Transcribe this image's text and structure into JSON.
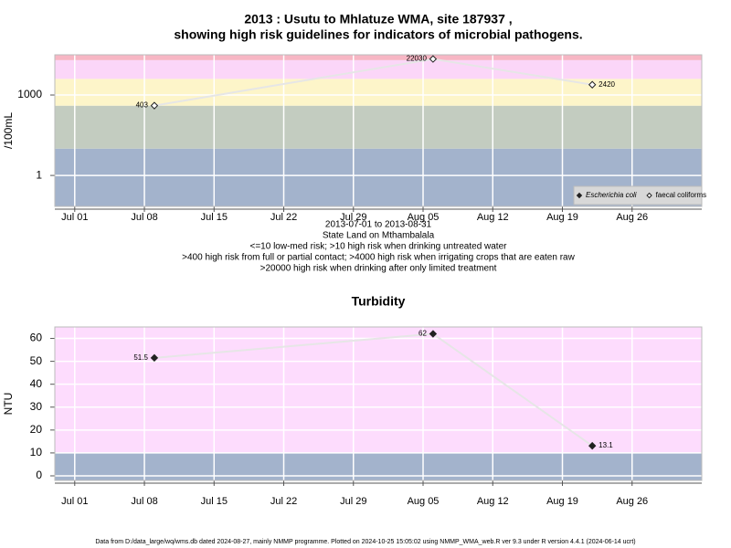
{
  "chart_data": [
    {
      "type": "line",
      "title": [
        "2013 : Usutu to Mhlatuze WMA, site 187937 ,",
        "showing high risk guidelines for indicators of microbial pathogens."
      ],
      "y_label": "/100mL",
      "log_y": true,
      "x": [
        "2013-07-09",
        "2013-08-06",
        "2013-08-22"
      ],
      "series": [
        {
          "name": "Escherichia coli",
          "color": "#222222",
          "marker": "filled",
          "values": [
            null,
            null,
            null
          ]
        },
        {
          "name": "faecal coliforms",
          "color": "#222222",
          "marker": "open",
          "values": [
            403,
            22030,
            2420
          ]
        }
      ],
      "xlim": [
        "2013-06-29",
        "2013-09-02"
      ],
      "xticks": [
        {
          "value": "2013-07-01",
          "label": "Jul 01"
        },
        {
          "value": "2013-07-08",
          "label": "Jul 08"
        },
        {
          "value": "2013-07-15",
          "label": "Jul 15"
        },
        {
          "value": "2013-07-22",
          "label": "Jul 22"
        },
        {
          "value": "2013-07-29",
          "label": "Jul 29"
        },
        {
          "value": "2013-08-05",
          "label": "Aug 05"
        },
        {
          "value": "2013-08-12",
          "label": "Aug 12"
        },
        {
          "value": "2013-08-19",
          "label": "Aug 19"
        },
        {
          "value": "2013-08-26",
          "label": "Aug 26"
        }
      ],
      "ylim": [
        0.07,
        31600
      ],
      "yticks": [
        1,
        1000
      ],
      "band_edges": [
        10,
        400,
        4000,
        20000
      ],
      "band_colors": [
        "#a3b3cc",
        "#c3ccc0",
        "#fdf5c9",
        "#fbd6f8",
        "#f7b6c4"
      ],
      "grid": true,
      "legend": "bottom-right",
      "annotations": [
        "2013-07-01 to 2013-08-31",
        "State Land on Mthambalala",
        "<=10 low-med risk; >10 high risk when drinking untreated water",
        ">400 high risk from full or partial contact; >4000 high risk when irrigating crops that are eaten raw",
        ">20000 high risk when drinking after only limited treatment"
      ]
    },
    {
      "type": "line",
      "title": [
        "Turbidity"
      ],
      "y_label": "NTU",
      "log_y": false,
      "x": [
        "2013-07-09",
        "2013-08-06",
        "2013-08-22"
      ],
      "series": [
        {
          "color": "#222222",
          "marker": "filled",
          "values": [
            51.5,
            62,
            13.1
          ]
        }
      ],
      "xlim": [
        "2013-06-29",
        "2013-09-02"
      ],
      "xticks": [
        {
          "value": "2013-07-01",
          "label": "Jul 01"
        },
        {
          "value": "2013-07-08",
          "label": "Jul 08"
        },
        {
          "value": "2013-07-15",
          "label": "Jul 15"
        },
        {
          "value": "2013-07-22",
          "label": "Jul 22"
        },
        {
          "value": "2013-07-29",
          "label": "Jul 29"
        },
        {
          "value": "2013-08-05",
          "label": "Aug 05"
        },
        {
          "value": "2013-08-12",
          "label": "Aug 12"
        },
        {
          "value": "2013-08-19",
          "label": "Aug 19"
        },
        {
          "value": "2013-08-26",
          "label": "Aug 26"
        }
      ],
      "ylim": [
        -2,
        65
      ],
      "yticks": [
        0,
        10,
        20,
        30,
        40,
        50,
        60
      ],
      "band_edges": [
        10
      ],
      "band_colors": [
        "#a3b3cc",
        "#fddcfd"
      ],
      "grid": true
    }
  ],
  "footer": "Data from D:/data_large/wq/wms.db dated 2024-08-27, mainly NMMP programme. Plotted on 2024-10-25 15:05:02 using NMMP_WMA_web.R ver 9.3 under R version 4.4.1 (2024-06-14 ucrt)"
}
